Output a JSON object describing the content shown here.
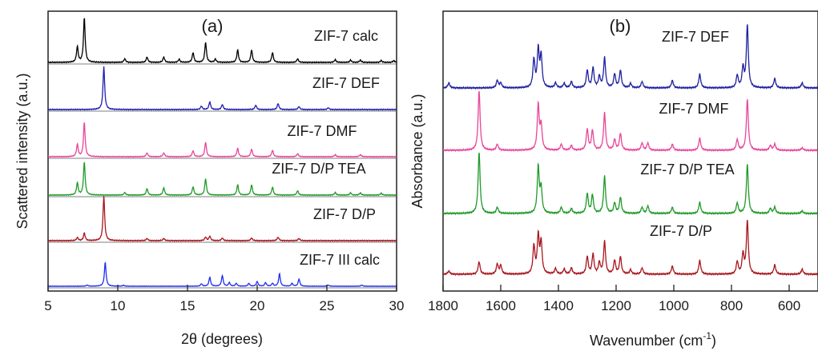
{
  "chart_data": [
    {
      "type": "line",
      "panel_label": "(a)",
      "xlabel": "2θ (degrees)",
      "ylabel": "Scattered intensity (a.u.)",
      "xlim": [
        5,
        30
      ],
      "x_ticks": [
        "5",
        "10",
        "15",
        "20",
        "25",
        "30"
      ],
      "y_ticks_shown": false,
      "stacked": true,
      "series": [
        {
          "name": "ZIF-7 calc",
          "color": "#000000",
          "peaks": [
            [
              7.1,
              0.35
            ],
            [
              7.6,
              1.0
            ],
            [
              10.5,
              0.08
            ],
            [
              12.1,
              0.12
            ],
            [
              13.3,
              0.12
            ],
            [
              14.4,
              0.07
            ],
            [
              15.4,
              0.22
            ],
            [
              16.3,
              0.45
            ],
            [
              17.0,
              0.07
            ],
            [
              18.6,
              0.28
            ],
            [
              19.6,
              0.28
            ],
            [
              21.1,
              0.22
            ],
            [
              22.9,
              0.08
            ],
            [
              25.6,
              0.06
            ],
            [
              26.7,
              0.05
            ],
            [
              27.4,
              0.05
            ],
            [
              28.9,
              0.04
            ],
            [
              29.8,
              0.04
            ]
          ]
        },
        {
          "name": "ZIF-7 DEF",
          "color": "#1f1fb4",
          "peaks": [
            [
              9.0,
              1.0
            ],
            [
              16.0,
              0.08
            ],
            [
              16.6,
              0.18
            ],
            [
              17.5,
              0.12
            ],
            [
              19.9,
              0.1
            ],
            [
              21.5,
              0.14
            ],
            [
              23.0,
              0.07
            ],
            [
              25.1,
              0.04
            ]
          ]
        },
        {
          "name": "ZIF-7 DMF",
          "color": "#e8459a",
          "peaks": [
            [
              7.1,
              0.32
            ],
            [
              7.6,
              0.9
            ],
            [
              12.1,
              0.1
            ],
            [
              13.3,
              0.1
            ],
            [
              15.4,
              0.16
            ],
            [
              16.3,
              0.38
            ],
            [
              18.6,
              0.22
            ],
            [
              19.6,
              0.2
            ],
            [
              21.1,
              0.17
            ],
            [
              22.9,
              0.08
            ],
            [
              25.6,
              0.05
            ],
            [
              27.4,
              0.05
            ]
          ]
        },
        {
          "name": "ZIF-7 D/P TEA",
          "color": "#1f9a28",
          "peaks": [
            [
              7.1,
              0.33
            ],
            [
              7.6,
              0.9
            ],
            [
              10.5,
              0.07
            ],
            [
              12.1,
              0.18
            ],
            [
              13.3,
              0.2
            ],
            [
              15.4,
              0.23
            ],
            [
              16.3,
              0.45
            ],
            [
              18.6,
              0.28
            ],
            [
              19.6,
              0.28
            ],
            [
              21.1,
              0.22
            ],
            [
              22.9,
              0.12
            ],
            [
              25.6,
              0.07
            ],
            [
              26.7,
              0.06
            ],
            [
              27.4,
              0.06
            ],
            [
              28.9,
              0.05
            ]
          ]
        },
        {
          "name": "ZIF-7 D/P",
          "color": "#a8161e",
          "peaks": [
            [
              7.1,
              0.07
            ],
            [
              7.6,
              0.17
            ],
            [
              9.0,
              1.0
            ],
            [
              12.1,
              0.05
            ],
            [
              13.3,
              0.05
            ],
            [
              16.3,
              0.08
            ],
            [
              16.6,
              0.1
            ],
            [
              17.5,
              0.06
            ],
            [
              19.6,
              0.06
            ],
            [
              21.5,
              0.08
            ],
            [
              23.0,
              0.05
            ]
          ]
        },
        {
          "name": "ZIF-7 III calc",
          "color": "#1f2ef0",
          "peaks": [
            [
              7.8,
              0.05
            ],
            [
              9.1,
              1.0
            ],
            [
              10.4,
              0.04
            ],
            [
              16.0,
              0.1
            ],
            [
              16.6,
              0.38
            ],
            [
              17.5,
              0.45
            ],
            [
              18.0,
              0.15
            ],
            [
              18.5,
              0.12
            ],
            [
              19.4,
              0.12
            ],
            [
              20.0,
              0.2
            ],
            [
              20.6,
              0.15
            ],
            [
              21.1,
              0.12
            ],
            [
              21.6,
              0.52
            ],
            [
              22.5,
              0.12
            ],
            [
              23.0,
              0.3
            ],
            [
              25.1,
              0.05
            ],
            [
              27.5,
              0.05
            ]
          ]
        }
      ]
    },
    {
      "type": "line",
      "panel_label": "(b)",
      "xlabel": "Wavenumber (cm",
      "xlabel_sup": "-1",
      "xlabel_end": ")",
      "ylabel": "Absorbance (a.u.)",
      "xlim": [
        1800,
        500
      ],
      "x_ticks": [
        "1800",
        "1600",
        "1400",
        "1200",
        "1000",
        "800",
        "600"
      ],
      "y_ticks_shown": false,
      "stacked": true,
      "series": [
        {
          "name": "ZIF-7 DEF",
          "color": "#1f1fa0",
          "peaks": [
            [
              1780,
              0.08
            ],
            [
              1612,
              0.12
            ],
            [
              1600,
              0.08
            ],
            [
              1485,
              0.45
            ],
            [
              1470,
              0.6
            ],
            [
              1460,
              0.5
            ],
            [
              1410,
              0.08
            ],
            [
              1380,
              0.07
            ],
            [
              1355,
              0.1
            ],
            [
              1300,
              0.28
            ],
            [
              1280,
              0.32
            ],
            [
              1258,
              0.18
            ],
            [
              1240,
              0.48
            ],
            [
              1205,
              0.22
            ],
            [
              1185,
              0.28
            ],
            [
              1150,
              0.07
            ],
            [
              1110,
              0.1
            ],
            [
              1005,
              0.12
            ],
            [
              910,
              0.22
            ],
            [
              780,
              0.2
            ],
            [
              760,
              0.32
            ],
            [
              745,
              1.0
            ],
            [
              650,
              0.15
            ],
            [
              555,
              0.08
            ]
          ]
        },
        {
          "name": "ZIF-7 DMF",
          "color": "#e8459a",
          "peaks": [
            [
              1675,
              1.0
            ],
            [
              1612,
              0.1
            ],
            [
              1470,
              0.75
            ],
            [
              1460,
              0.4
            ],
            [
              1390,
              0.1
            ],
            [
              1355,
              0.08
            ],
            [
              1300,
              0.35
            ],
            [
              1282,
              0.33
            ],
            [
              1240,
              0.62
            ],
            [
              1205,
              0.18
            ],
            [
              1185,
              0.28
            ],
            [
              1110,
              0.12
            ],
            [
              1090,
              0.12
            ],
            [
              1005,
              0.1
            ],
            [
              910,
              0.2
            ],
            [
              780,
              0.18
            ],
            [
              745,
              0.85
            ],
            [
              665,
              0.08
            ],
            [
              650,
              0.1
            ],
            [
              555,
              0.04
            ]
          ]
        },
        {
          "name": "ZIF-7 D/P TEA",
          "color": "#1f9a28",
          "peaks": [
            [
              1675,
              1.0
            ],
            [
              1612,
              0.1
            ],
            [
              1470,
              0.75
            ],
            [
              1460,
              0.4
            ],
            [
              1390,
              0.1
            ],
            [
              1355,
              0.08
            ],
            [
              1300,
              0.32
            ],
            [
              1282,
              0.3
            ],
            [
              1240,
              0.6
            ],
            [
              1205,
              0.17
            ],
            [
              1185,
              0.26
            ],
            [
              1110,
              0.1
            ],
            [
              1090,
              0.12
            ],
            [
              1005,
              0.1
            ],
            [
              910,
              0.18
            ],
            [
              780,
              0.17
            ],
            [
              745,
              0.8
            ],
            [
              665,
              0.08
            ],
            [
              650,
              0.1
            ],
            [
              555,
              0.04
            ]
          ]
        },
        {
          "name": "ZIF-7 D/P",
          "color": "#a8161e",
          "peaks": [
            [
              1780,
              0.05
            ],
            [
              1675,
              0.2
            ],
            [
              1612,
              0.16
            ],
            [
              1600,
              0.14
            ],
            [
              1485,
              0.45
            ],
            [
              1470,
              0.6
            ],
            [
              1460,
              0.5
            ],
            [
              1410,
              0.09
            ],
            [
              1380,
              0.08
            ],
            [
              1355,
              0.1
            ],
            [
              1300,
              0.28
            ],
            [
              1280,
              0.32
            ],
            [
              1258,
              0.18
            ],
            [
              1240,
              0.52
            ],
            [
              1205,
              0.22
            ],
            [
              1185,
              0.28
            ],
            [
              1150,
              0.07
            ],
            [
              1110,
              0.1
            ],
            [
              1005,
              0.13
            ],
            [
              910,
              0.22
            ],
            [
              780,
              0.2
            ],
            [
              760,
              0.32
            ],
            [
              745,
              0.85
            ],
            [
              650,
              0.15
            ],
            [
              555,
              0.08
            ]
          ]
        }
      ]
    }
  ]
}
